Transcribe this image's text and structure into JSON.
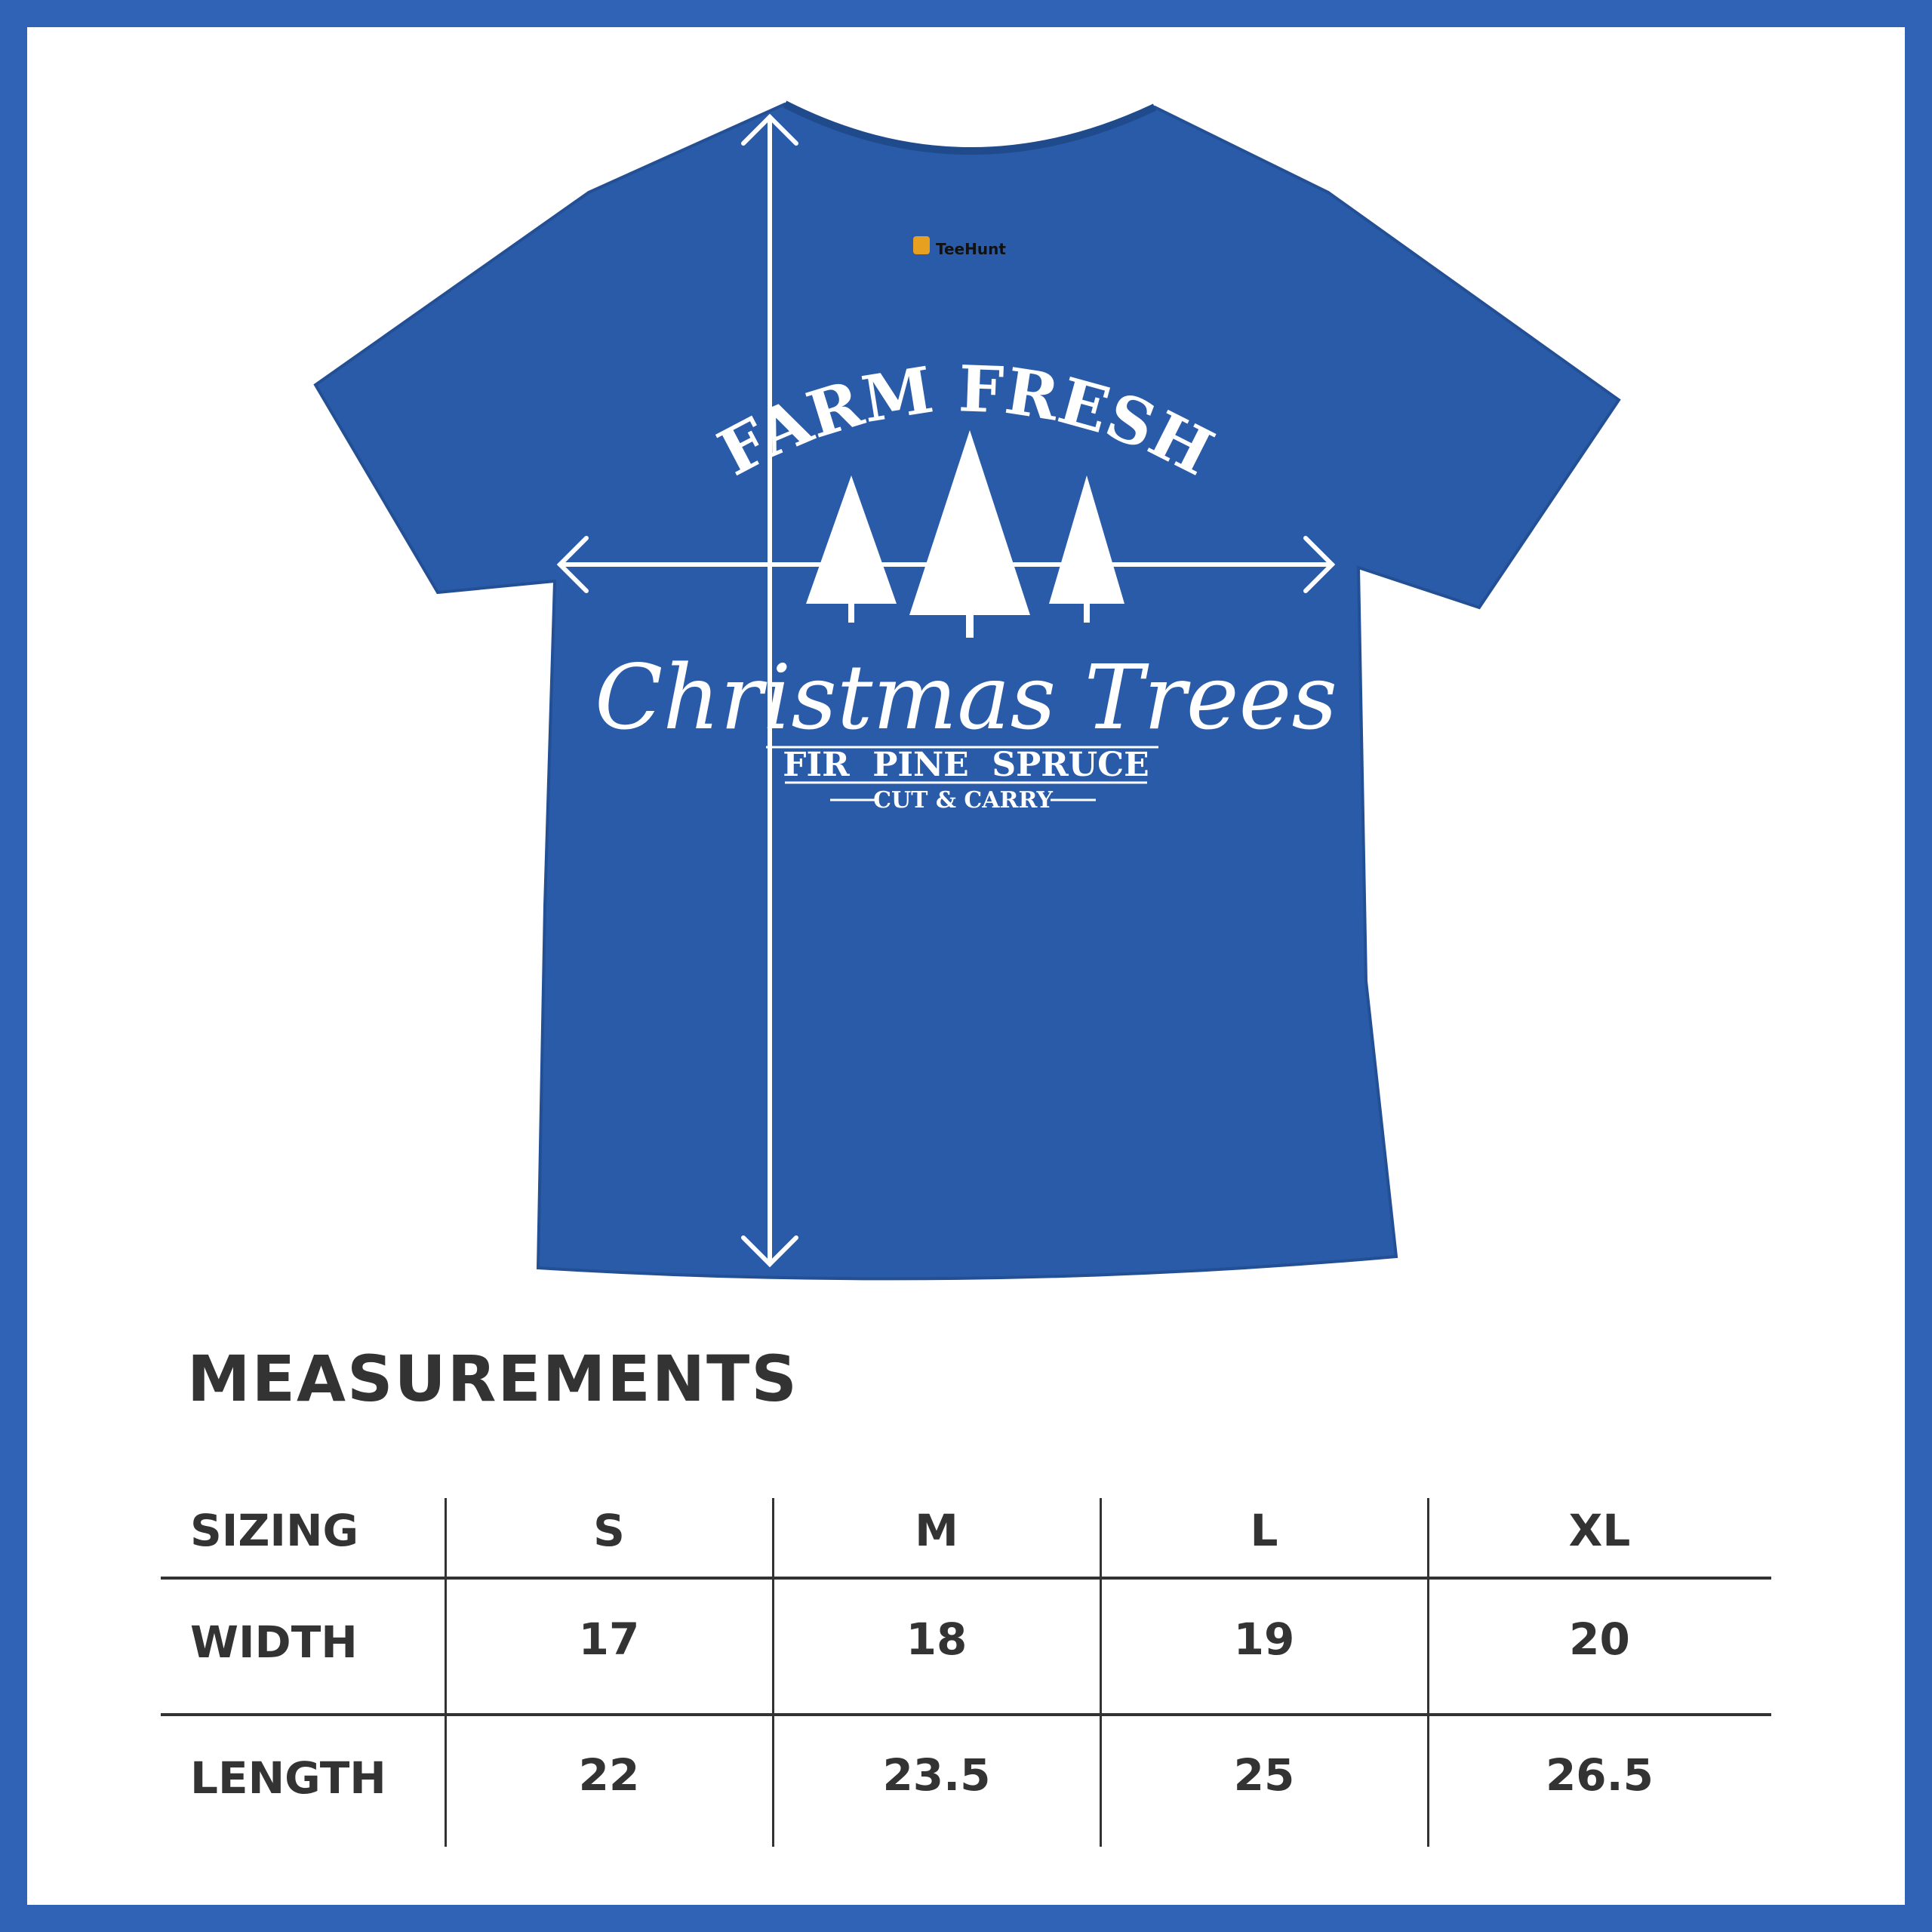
{
  "colors": {
    "border": "#3062b5",
    "shirt": "#2a5ba8",
    "print": "#ffffff",
    "text": "#333333"
  },
  "shirt": {
    "tag_brand": "TeeHunt",
    "print_line1": "FARM FRESH",
    "print_line2": "Christmas Trees",
    "print_line3": "FIR  PINE  SPRUCE",
    "print_line4": "CUT & CARRY"
  },
  "measurements": {
    "title": "MEASUREMENTS",
    "header": [
      "SIZING",
      "S",
      "M",
      "L",
      "XL"
    ],
    "rows": [
      {
        "label": "WIDTH",
        "values": [
          "17",
          "18",
          "19",
          "20"
        ]
      },
      {
        "label": "LENGTH",
        "values": [
          "22",
          "23.5",
          "25",
          "26.5"
        ]
      }
    ]
  }
}
